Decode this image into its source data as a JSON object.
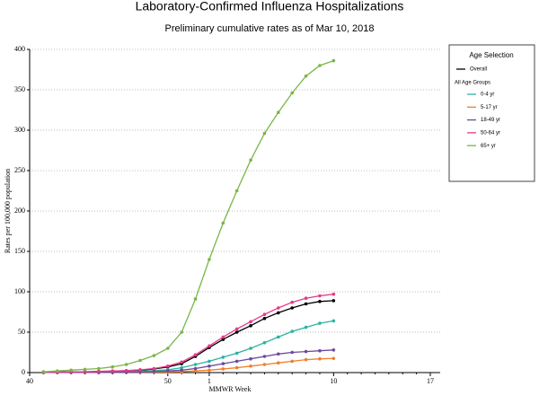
{
  "chart_data": {
    "type": "line",
    "title": "Laboratory-Confirmed Influenza Hospitalizations",
    "subtitle": "Preliminary cumulative rates as of Mar 10, 2018",
    "x_label": "MMWR Week",
    "y_label": "Rates per 100,000 population",
    "legend_title": "Age Selection",
    "legend_group_label": "All Age Groups",
    "grid": true,
    "categories": [
      "40",
      null,
      null,
      null,
      null,
      null,
      null,
      null,
      null,
      null,
      "50",
      null,
      null,
      "1",
      null,
      null,
      null,
      null,
      null,
      null,
      null,
      null,
      "10",
      null,
      null,
      null,
      null,
      null,
      null,
      "17"
    ],
    "ylim": [
      0,
      400
    ],
    "yticks": [
      0,
      50,
      100,
      150,
      200,
      250,
      300,
      350,
      400
    ],
    "series": [
      {
        "name": "Overall",
        "color": "#000000",
        "values": [
          null,
          0.5,
          0.6,
          0.8,
          1,
          1.3,
          1.7,
          2.3,
          3,
          4.5,
          7,
          11,
          20,
          31,
          41,
          50,
          58,
          67,
          74,
          80,
          85,
          88,
          89,
          null,
          null,
          null,
          null,
          null,
          null,
          null
        ]
      },
      {
        "name": "0-4 yr",
        "color": "#2bb3a0",
        "values": [
          null,
          0.3,
          0.4,
          0.5,
          0.6,
          0.8,
          1,
          1.3,
          1.8,
          2.5,
          3.5,
          6,
          10,
          14,
          19,
          24,
          30,
          37,
          44,
          51,
          56,
          61,
          64,
          null,
          null,
          null,
          null,
          null,
          null,
          null
        ]
      },
      {
        "name": "5-17 yr",
        "color": "#f07f2a",
        "values": [
          null,
          0.1,
          0.1,
          0.2,
          0.2,
          0.3,
          0.3,
          0.4,
          0.5,
          0.6,
          0.8,
          1.2,
          2,
          3,
          4.5,
          6,
          8,
          10,
          12,
          14,
          16,
          17,
          17.5,
          null,
          null,
          null,
          null,
          null,
          null,
          null
        ]
      },
      {
        "name": "18-49 yr",
        "color": "#6a4a9e",
        "values": [
          null,
          0.1,
          0.2,
          0.2,
          0.3,
          0.3,
          0.4,
          0.6,
          0.8,
          1.2,
          2,
          3,
          5,
          8,
          11,
          14,
          17,
          20,
          23,
          25,
          26,
          27,
          28,
          null,
          null,
          null,
          null,
          null,
          null,
          null
        ]
      },
      {
        "name": "50-64 yr",
        "color": "#e8388a",
        "values": [
          null,
          0.5,
          0.7,
          1,
          1,
          1.5,
          2,
          2.5,
          3.5,
          5,
          8,
          13,
          22,
          33,
          44,
          54,
          63,
          72,
          80,
          87,
          92,
          95,
          97,
          null,
          null,
          null,
          null,
          null,
          null,
          null
        ]
      },
      {
        "name": "65+ yr",
        "color": "#7ab648",
        "values": [
          null,
          1,
          2,
          3,
          4,
          5,
          7,
          10,
          15,
          21,
          30,
          50,
          91,
          140,
          185,
          225,
          263,
          296,
          322,
          346,
          367,
          380,
          386,
          null,
          null,
          null,
          null,
          null,
          null,
          null
        ]
      }
    ]
  }
}
